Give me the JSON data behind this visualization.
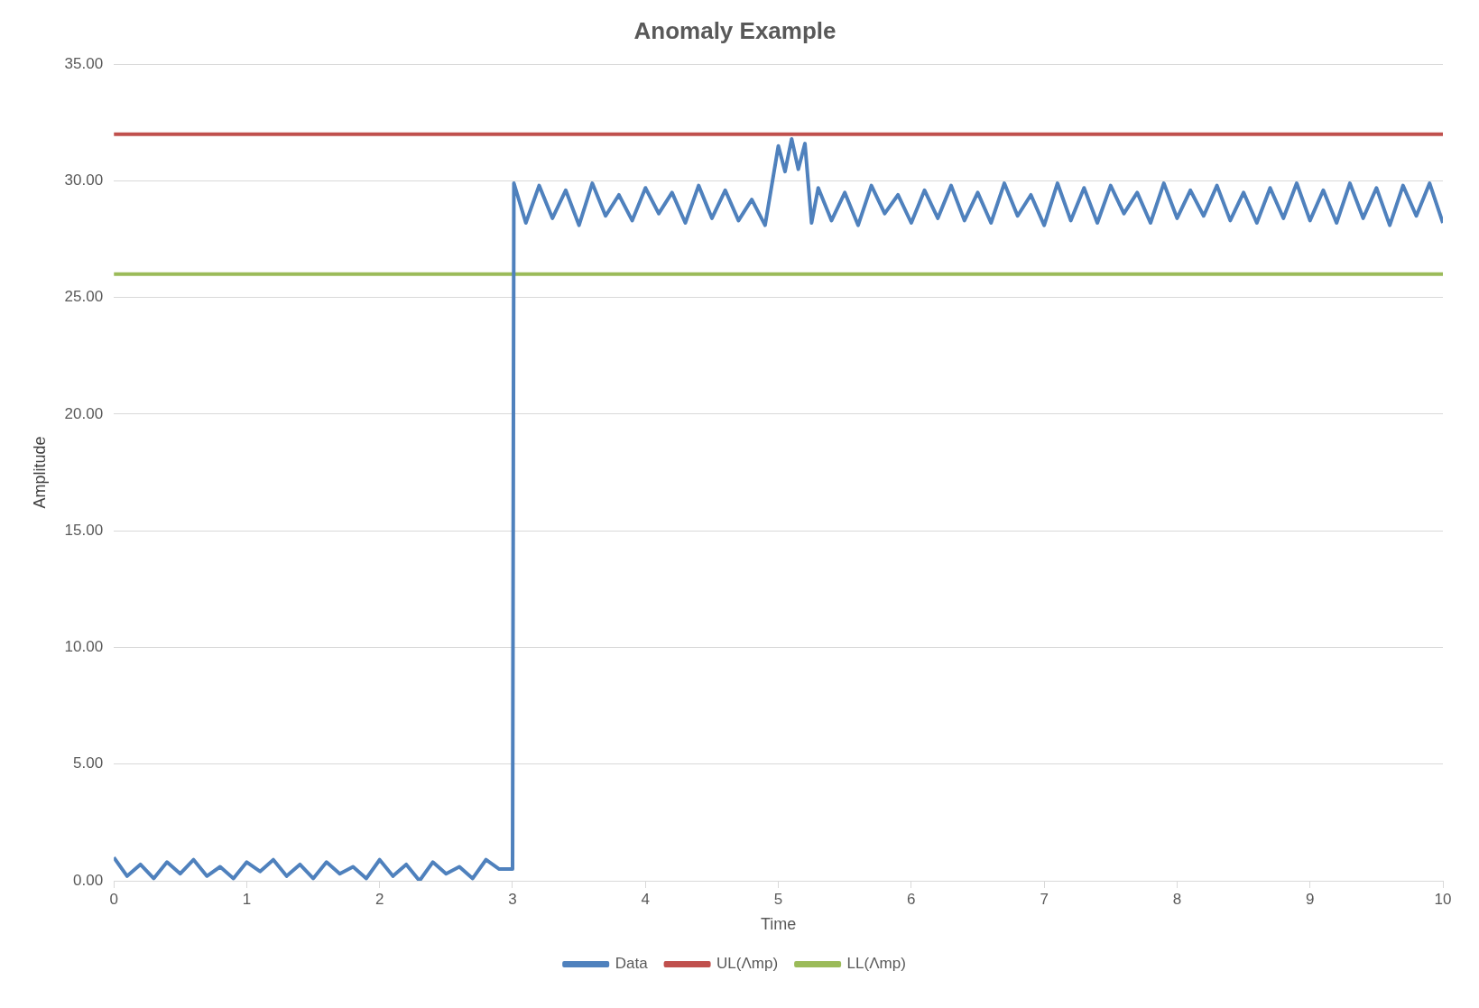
{
  "chart_data": {
    "type": "line",
    "title": "Anomaly Example",
    "xlabel": "Time",
    "ylabel": "Amplitude",
    "xlim": [
      0,
      10
    ],
    "xticks": [
      0,
      1,
      2,
      3,
      4,
      5,
      6,
      7,
      8,
      9,
      10
    ],
    "ylim": [
      0,
      35
    ],
    "yticks": [
      {
        "value": 0,
        "label": "0.00"
      },
      {
        "value": 5,
        "label": "5.00"
      },
      {
        "value": 10,
        "label": "10.00"
      },
      {
        "value": 15,
        "label": "15.00"
      },
      {
        "value": 20,
        "label": "20.00"
      },
      {
        "value": 25,
        "label": "25.00"
      },
      {
        "value": 30,
        "label": "30.00"
      },
      {
        "value": 35,
        "label": "35.00"
      }
    ],
    "grid": "y",
    "legend": "bottom",
    "marker": "none",
    "series": [
      {
        "name": "Data",
        "color": "#4f81bd",
        "x": [
          0,
          0.1,
          0.2,
          0.3,
          0.4,
          0.5,
          0.6,
          0.7,
          0.8,
          0.9,
          1.0,
          1.1,
          1.2,
          1.3,
          1.4,
          1.5,
          1.6,
          1.7,
          1.8,
          1.9,
          2.0,
          2.1,
          2.2,
          2.3,
          2.4,
          2.5,
          2.6,
          2.7,
          2.8,
          2.9,
          3.0,
          3.01,
          3.1,
          3.2,
          3.3,
          3.4,
          3.5,
          3.6,
          3.7,
          3.8,
          3.9,
          4.0,
          4.1,
          4.2,
          4.3,
          4.4,
          4.5,
          4.6,
          4.7,
          4.8,
          4.9,
          5.0,
          5.05,
          5.1,
          5.15,
          5.2,
          5.25,
          5.3,
          5.4,
          5.5,
          5.6,
          5.7,
          5.8,
          5.9,
          6.0,
          6.1,
          6.2,
          6.3,
          6.4,
          6.5,
          6.6,
          6.7,
          6.8,
          6.9,
          7.0,
          7.1,
          7.2,
          7.3,
          7.4,
          7.5,
          7.6,
          7.7,
          7.8,
          7.9,
          8.0,
          8.1,
          8.2,
          8.3,
          8.4,
          8.5,
          8.6,
          8.7,
          8.8,
          8.9,
          9.0,
          9.1,
          9.2,
          9.3,
          9.4,
          9.5,
          9.6,
          9.7,
          9.8,
          9.9,
          10.0
        ],
        "values": [
          1.0,
          0.2,
          0.7,
          0.1,
          0.8,
          0.3,
          0.9,
          0.2,
          0.6,
          0.1,
          0.8,
          0.4,
          0.9,
          0.2,
          0.7,
          0.1,
          0.8,
          0.3,
          0.6,
          0.1,
          0.9,
          0.2,
          0.7,
          0.0,
          0.8,
          0.3,
          0.6,
          0.1,
          0.9,
          0.5,
          0.5,
          29.9,
          28.2,
          29.8,
          28.4,
          29.6,
          28.1,
          29.9,
          28.5,
          29.4,
          28.3,
          29.7,
          28.6,
          29.5,
          28.2,
          29.8,
          28.4,
          29.6,
          28.3,
          29.2,
          28.1,
          31.5,
          30.4,
          31.8,
          30.5,
          31.6,
          28.2,
          29.7,
          28.3,
          29.5,
          28.1,
          29.8,
          28.6,
          29.4,
          28.2,
          29.6,
          28.4,
          29.8,
          28.3,
          29.5,
          28.2,
          29.9,
          28.5,
          29.4,
          28.1,
          29.9,
          28.3,
          29.7,
          28.2,
          29.8,
          28.6,
          29.5,
          28.2,
          29.9,
          28.4,
          29.6,
          28.5,
          29.8,
          28.3,
          29.5,
          28.2,
          29.7,
          28.4,
          29.9,
          28.3,
          29.6,
          28.2,
          29.9,
          28.4,
          29.7,
          28.1,
          29.8,
          28.5,
          29.9,
          28.2
        ]
      },
      {
        "name": "UL(Λmp)",
        "color": "#c0504d",
        "x": [
          0,
          10
        ],
        "values": [
          32,
          32
        ]
      },
      {
        "name": "LL(Λmp)",
        "color": "#9bbb59",
        "x": [
          0,
          10
        ],
        "values": [
          26,
          26
        ]
      }
    ]
  }
}
